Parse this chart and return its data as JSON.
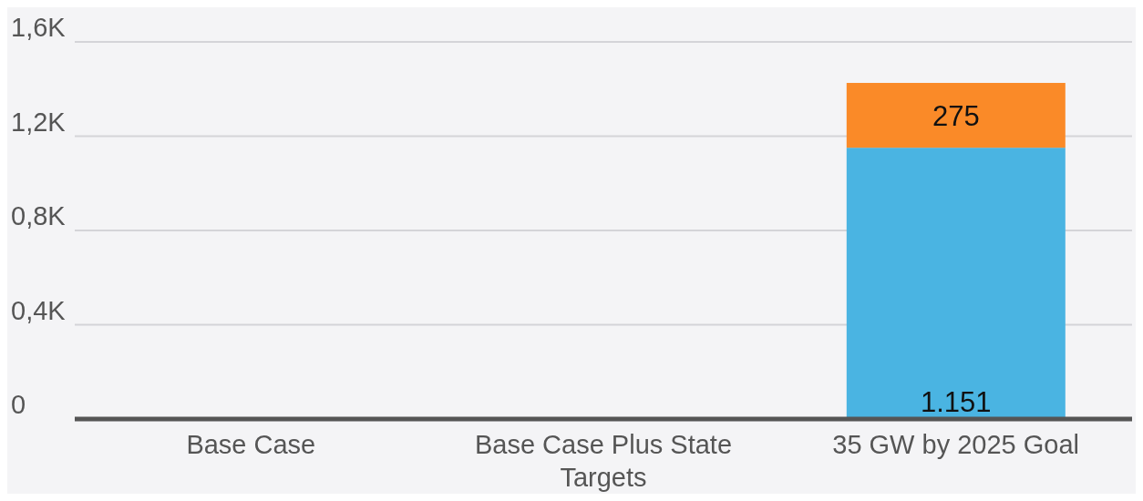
{
  "chart_data": {
    "type": "bar",
    "stacked": true,
    "categories": [
      "Base Case",
      "Base Case Plus State Targets",
      "35 GW by 2025 Goal"
    ],
    "series": [
      {
        "color": "#4ab4e2",
        "values": [
          null,
          null,
          1151
        ],
        "value_labels": [
          null,
          null,
          "1.151"
        ]
      },
      {
        "color": "#fa8a28",
        "values": [
          null,
          null,
          275
        ],
        "value_labels": [
          null,
          null,
          "275"
        ]
      }
    ],
    "ylim": [
      0,
      1600
    ],
    "yticks": [
      0,
      {
        "value": 400,
        "label": "0,4K"
      },
      {
        "value": 800,
        "label": "0,8K"
      },
      {
        "value": 1200,
        "label": "1,2K"
      },
      {
        "value": 1600,
        "label": "1,6K"
      }
    ],
    "grid": "y",
    "legend": false
  }
}
